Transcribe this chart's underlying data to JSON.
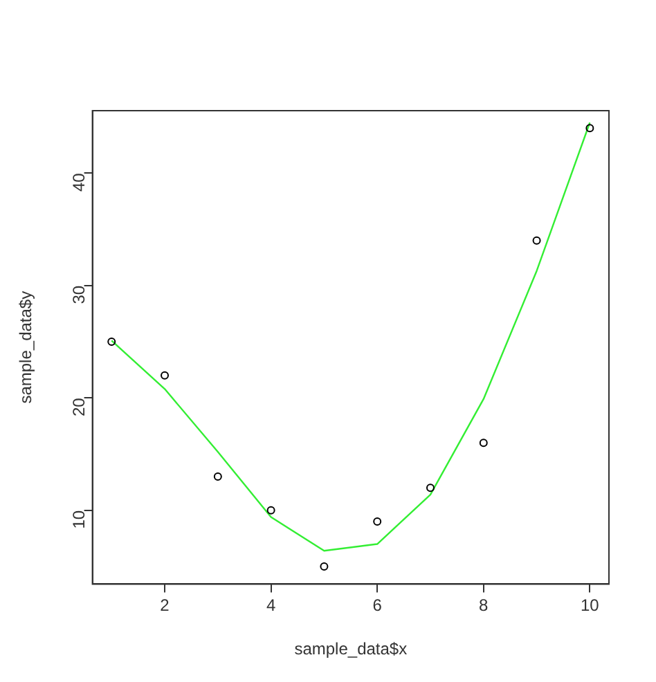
{
  "chart_data": {
    "type": "scatter",
    "xlabel": "sample_data$x",
    "ylabel": "sample_data$y",
    "x": [
      1,
      2,
      3,
      4,
      5,
      6,
      7,
      8,
      9,
      10
    ],
    "series": [
      {
        "color": "#000000",
        "marker": "circle",
        "values": [
          25,
          22,
          13,
          10,
          5,
          9,
          12,
          16,
          34,
          44
        ]
      },
      {
        "type": "line",
        "color": "#33ee33",
        "marker": "none",
        "line_style": "solid",
        "x": [
          1,
          2,
          3,
          4,
          5,
          6,
          7,
          8,
          9,
          10
        ],
        "values": [
          25.1,
          20.8,
          15.2,
          9.4,
          6.4,
          7.0,
          11.4,
          19.9,
          31.3,
          44.5
        ]
      }
    ],
    "xlim": [
      0.64,
      10.36
    ],
    "ylim": [
      3.44,
      45.56
    ],
    "xticks": [
      2,
      4,
      6,
      8,
      10
    ],
    "yticks": [
      10,
      20,
      30,
      40
    ],
    "grid": false,
    "legend": false
  }
}
